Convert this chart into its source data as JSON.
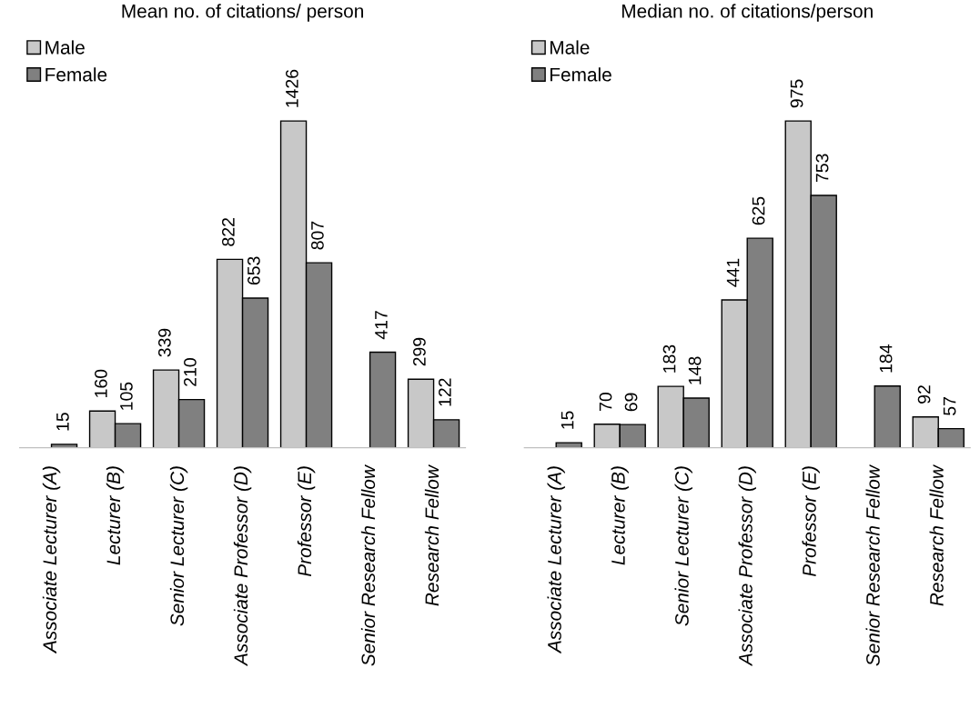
{
  "chart_data": [
    {
      "type": "bar",
      "title": "Mean no. of citations/ person",
      "categories": [
        "Associate Lecturer (A)",
        "Lecturer (B)",
        "Senior Lecturer (C)",
        "Associate Professor (D)",
        "Professor (E)",
        "Senior Research Fellow",
        "Research Fellow"
      ],
      "series": [
        {
          "name": "Male",
          "color": "#c8c8c8",
          "values": [
            null,
            160,
            339,
            822,
            1426,
            null,
            299
          ]
        },
        {
          "name": "Female",
          "color": "#808080",
          "values": [
            15,
            105,
            210,
            653,
            807,
            417,
            122
          ]
        }
      ],
      "data_labels": true,
      "legend": "top left",
      "grid": false
    },
    {
      "type": "bar",
      "title": "Median no. of citations/person",
      "categories": [
        "Associate Lecturer (A)",
        "Lecturer (B)",
        "Senior Lecturer (C)",
        "Associate Professor (D)",
        "Professor (E)",
        "Senior Research Fellow",
        "Research Fellow"
      ],
      "series": [
        {
          "name": "Male",
          "color": "#c8c8c8",
          "values": [
            null,
            70,
            183,
            441,
            975,
            null,
            92
          ]
        },
        {
          "name": "Female",
          "color": "#808080",
          "values": [
            15,
            69,
            148,
            625,
            753,
            184,
            57
          ]
        }
      ],
      "data_labels": true,
      "legend": "top left",
      "grid": false
    }
  ]
}
